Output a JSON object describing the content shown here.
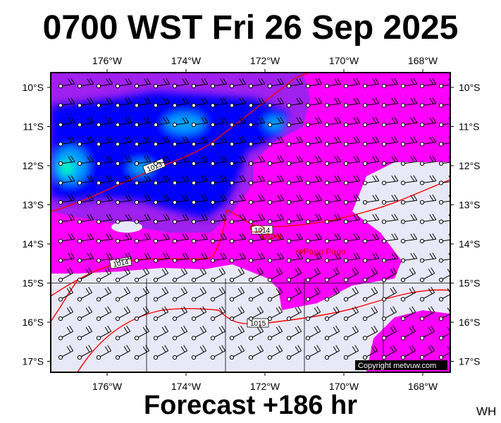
{
  "title": "0700 WST Fri 26 Sep 2025",
  "footer": "Forecast +186 hr",
  "initials": "WH",
  "copyright": "Copyright metvuw.com",
  "lon_ticks": [
    "176°W",
    "174°W",
    "172°W",
    "170°W",
    "168°W"
  ],
  "lat_ticks": [
    "10°S",
    "11°S",
    "12°S",
    "13°S",
    "14°S",
    "15°S",
    "16°S",
    "17°S"
  ],
  "places": [
    {
      "name": "Apia",
      "lon": -171.75,
      "lat": -13.83
    },
    {
      "name": "Pago Pago",
      "lon": -170.7,
      "lat": -14.28
    }
  ],
  "isobar_labels": [
    "1013",
    "1014",
    "1014",
    "1015"
  ],
  "colors": {
    "land_clear": "#e8e8f8",
    "rain_light": "#ff00ff",
    "rain_moderate": "#a020f0",
    "rain_heavy": "#0000ff",
    "rain_very_heavy": "#00a0ff",
    "rain_extreme": "#00ffaa",
    "isobar": "#ff0000"
  }
}
